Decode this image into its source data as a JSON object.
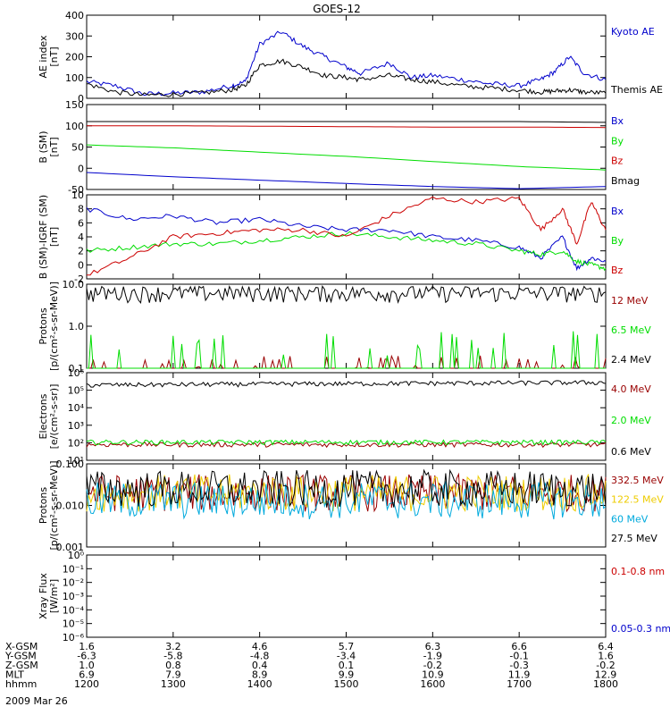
{
  "title": "GOES-12",
  "date_label": "2009 Mar 26",
  "orbit_table": {
    "rows": [
      {
        "label": "X-GSM",
        "values": [
          "1.6",
          "3.2",
          "4.6",
          "5.7",
          "6.3",
          "6.6",
          "6.4"
        ]
      },
      {
        "label": "Y-GSM",
        "values": [
          "-6.3",
          "-5.8",
          "-4.8",
          "-3.4",
          "-1.9",
          "-0.1",
          "1.6"
        ]
      },
      {
        "label": "Z-GSM",
        "values": [
          "1.0",
          "0.8",
          "0.4",
          "0.1",
          "-0.2",
          "-0.3",
          "-0.2"
        ]
      },
      {
        "label": "MLT",
        "values": [
          "6.9",
          "7.9",
          "8.9",
          "9.9",
          "10.9",
          "11.9",
          "12.9"
        ]
      },
      {
        "label": "hhmm",
        "values": [
          "1200",
          "1300",
          "1400",
          "1500",
          "1600",
          "1700",
          "1800"
        ]
      }
    ]
  },
  "colors": {
    "black": "#000000",
    "blue": "#0000cc",
    "red": "#cc0000",
    "green": "#00dd00",
    "darkred": "#990000",
    "cyan": "#00aadd",
    "yellow": "#eecc00"
  },
  "chart_data": [
    {
      "id": "ae",
      "type": "line",
      "ylabel": "AE index\n[nT]",
      "ylim": [
        0,
        400
      ],
      "yscale": "linear",
      "yticks": [
        0,
        100,
        200,
        300,
        400
      ],
      "x": [
        "12:00",
        "12:20",
        "12:40",
        "13:00",
        "13:20",
        "13:40",
        "13:50",
        "14:00",
        "14:15",
        "14:30",
        "14:45",
        "15:00",
        "15:10",
        "15:30",
        "15:45",
        "16:00",
        "16:20",
        "16:40",
        "17:00",
        "17:15",
        "17:25",
        "17:35",
        "17:45",
        "18:00"
      ],
      "series": [
        {
          "name": "Kyoto AE",
          "color": "blue",
          "values": [
            80,
            60,
            20,
            25,
            30,
            60,
            80,
            260,
            320,
            250,
            200,
            150,
            120,
            170,
            100,
            110,
            90,
            70,
            60,
            90,
            130,
            200,
            120,
            90
          ]
        },
        {
          "name": "Themis AE",
          "color": "black",
          "values": [
            70,
            30,
            15,
            20,
            25,
            40,
            60,
            160,
            180,
            150,
            110,
            100,
            90,
            110,
            90,
            80,
            60,
            50,
            40,
            30,
            35,
            40,
            30,
            25
          ]
        }
      ]
    },
    {
      "id": "bsm",
      "type": "line",
      "ylabel": "B (SM)\n[nT]",
      "ylim": [
        -50,
        150
      ],
      "yscale": "linear",
      "yticks": [
        -50,
        0,
        50,
        100,
        150
      ],
      "x": [
        "12:00",
        "13:00",
        "14:00",
        "15:00",
        "16:00",
        "17:00",
        "18:00"
      ],
      "series": [
        {
          "name": "Bx",
          "color": "blue",
          "values": [
            -10,
            -20,
            -28,
            -36,
            -43,
            -48,
            -43
          ]
        },
        {
          "name": "By",
          "color": "green",
          "values": [
            55,
            48,
            38,
            28,
            16,
            4,
            -4
          ]
        },
        {
          "name": "Bz",
          "color": "red",
          "values": [
            100,
            100,
            99,
            98,
            97,
            97,
            96
          ]
        },
        {
          "name": "Bmag",
          "color": "black",
          "values": [
            110,
            110,
            110,
            110,
            110,
            110,
            108
          ]
        }
      ]
    },
    {
      "id": "bdiff",
      "type": "line",
      "ylabel": "B (SM)-IGRF (SM)\n[nT]",
      "ylim": [
        -2,
        10
      ],
      "yscale": "linear",
      "yticks": [
        -2,
        0,
        2,
        4,
        6,
        8,
        10
      ],
      "x": [
        "12:00",
        "12:30",
        "13:00",
        "13:30",
        "14:00",
        "14:30",
        "15:00",
        "15:30",
        "16:00",
        "16:30",
        "17:00",
        "17:15",
        "17:30",
        "17:40",
        "17:50",
        "18:00"
      ],
      "series": [
        {
          "name": "Bx",
          "color": "blue",
          "values": [
            8,
            6.5,
            7,
            6,
            6.5,
            5.5,
            5,
            5,
            4,
            3.5,
            2.5,
            1,
            4,
            -0.5,
            1,
            0.5
          ]
        },
        {
          "name": "By",
          "color": "green",
          "values": [
            2,
            2.5,
            3,
            3,
            3.5,
            4,
            4.5,
            4,
            3.5,
            3,
            2,
            1.5,
            2,
            0.5,
            0,
            -0.5
          ]
        },
        {
          "name": "Bz",
          "color": "red",
          "values": [
            -1.5,
            1,
            4,
            4.5,
            5,
            5,
            4,
            7,
            9.5,
            9,
            9.5,
            5,
            8,
            3,
            9,
            5
          ]
        }
      ]
    },
    {
      "id": "protons_low",
      "type": "line",
      "ylabel": "Protons\n[p/(cm²-s-sr-MeV)]",
      "ylim": [
        0.1,
        10
      ],
      "yscale": "log",
      "yticks": [
        0.1,
        1.0,
        10.0
      ],
      "yticklabels": [
        "0.1",
        "1.0",
        "10.0"
      ],
      "series": [
        {
          "name": "12 MeV",
          "color": "darkred",
          "level": 0.1,
          "note": "sparse spikes near 0.1-0.2"
        },
        {
          "name": "6.5 MeV",
          "color": "green",
          "level": 0.2,
          "note": "sparse spikes 0.1-0.6"
        },
        {
          "name": "2.4 MeV",
          "color": "black",
          "level": 6.0,
          "note": "noisy around 4-9"
        }
      ]
    },
    {
      "id": "electrons",
      "type": "line",
      "ylabel": "Electrons\n[e/(cm²-s-sr)]",
      "ylim": [
        10,
        1000000
      ],
      "yscale": "log",
      "yticks": [
        10,
        100,
        1000,
        10000,
        100000,
        1000000
      ],
      "yticklabels": [
        "10¹",
        "10²",
        "10³",
        "10⁴",
        "10⁵",
        "10⁶"
      ],
      "series": [
        {
          "name": "4.0 MeV",
          "color": "darkred",
          "level": 80
        },
        {
          "name": "2.0 MeV",
          "color": "green",
          "level": 110
        },
        {
          "name": "0.6 MeV",
          "color": "black",
          "level": 200000
        }
      ]
    },
    {
      "id": "protons_high",
      "type": "line",
      "ylabel": "Protons\n[p/(cm²-s-sr-MeV)]",
      "ylim": [
        0.001,
        0.1
      ],
      "yscale": "log",
      "yticks": [
        0.001,
        0.01,
        0.1
      ],
      "yticklabels": [
        "0.001",
        "0.010",
        "0.100"
      ],
      "series": [
        {
          "name": "332.5 MeV",
          "color": "darkred",
          "level": 0.02
        },
        {
          "name": "122.5 MeV",
          "color": "yellow",
          "level": 0.02
        },
        {
          "name": "60 MeV",
          "color": "cyan",
          "level": 0.013
        },
        {
          "name": "27.5 MeV",
          "color": "black",
          "level": 0.025
        }
      ]
    },
    {
      "id": "xray",
      "type": "line",
      "ylabel": "Xray Flux\n[W/m²]",
      "ylim": [
        1e-06,
        1
      ],
      "yscale": "log",
      "yticks": [
        1e-06,
        1e-05,
        0.0001,
        0.001,
        0.01,
        0.1,
        1
      ],
      "yticklabels": [
        "10⁻⁶",
        "10⁻⁵",
        "10⁻⁴",
        "10⁻³",
        "10⁻²",
        "10⁻¹",
        "10⁰"
      ],
      "series": [
        {
          "name": "0.1-0.8 nm",
          "color": "red"
        },
        {
          "name": "0.05-0.3 nm",
          "color": "blue"
        }
      ]
    }
  ]
}
